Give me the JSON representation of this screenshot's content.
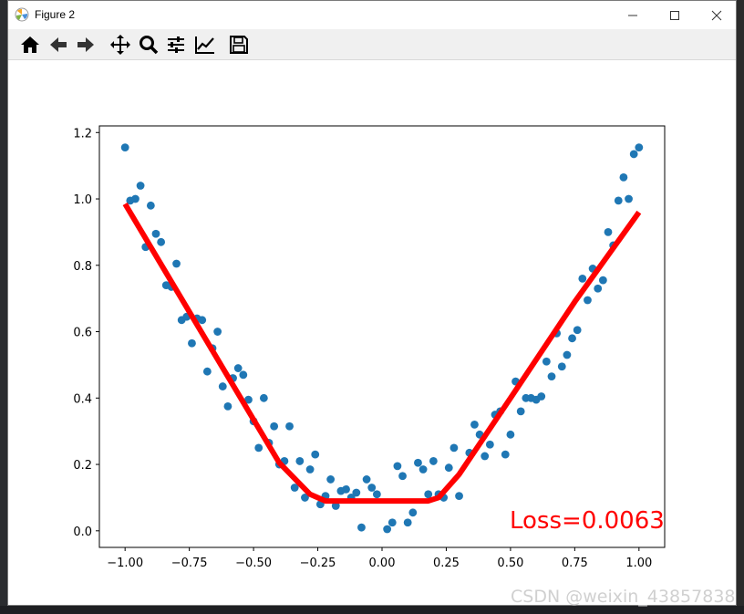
{
  "window": {
    "title": "Figure 2"
  },
  "toolbar": {
    "tools": [
      "home-icon",
      "back-icon",
      "forward-icon",
      "pan-icon",
      "zoom-icon",
      "configure-subplots-icon",
      "edit-axis-icon",
      "save-icon"
    ]
  },
  "colors": {
    "scatter": "#1f77b4",
    "fit_line": "#ff0000",
    "loss_text": "#ff0000"
  },
  "loss_text": "Loss=0.0063",
  "watermark": "CSDN @weixin_43857838",
  "chart_data": {
    "type": "scatter",
    "title": "",
    "xlabel": "",
    "ylabel": "",
    "xlim": [
      -1.1,
      1.1
    ],
    "ylim": [
      -0.05,
      1.22
    ],
    "xticks": [
      -1.0,
      -0.75,
      -0.5,
      -0.25,
      0.0,
      0.25,
      0.5,
      0.75,
      1.0
    ],
    "xtick_labels": [
      "−1.00",
      "−0.75",
      "−0.50",
      "−0.25",
      "0.00",
      "0.25",
      "0.50",
      "0.75",
      "1.00"
    ],
    "yticks": [
      0.0,
      0.2,
      0.4,
      0.6,
      0.8,
      1.0,
      1.2
    ],
    "ytick_labels": [
      "0.0",
      "0.2",
      "0.4",
      "0.6",
      "0.8",
      "1.0",
      "1.2"
    ],
    "grid": false,
    "series": [
      {
        "kind": "scatter",
        "points": [
          [
            -1.0,
            1.155
          ],
          [
            -0.98,
            0.995
          ],
          [
            -0.96,
            1.0
          ],
          [
            -0.94,
            1.04
          ],
          [
            -0.92,
            0.855
          ],
          [
            -0.9,
            0.98
          ],
          [
            -0.88,
            0.895
          ],
          [
            -0.86,
            0.87
          ],
          [
            -0.84,
            0.74
          ],
          [
            -0.82,
            0.735
          ],
          [
            -0.8,
            0.805
          ],
          [
            -0.78,
            0.635
          ],
          [
            -0.76,
            0.645
          ],
          [
            -0.74,
            0.565
          ],
          [
            -0.72,
            0.64
          ],
          [
            -0.7,
            0.635
          ],
          [
            -0.68,
            0.48
          ],
          [
            -0.66,
            0.55
          ],
          [
            -0.64,
            0.6
          ],
          [
            -0.62,
            0.435
          ],
          [
            -0.6,
            0.375
          ],
          [
            -0.58,
            0.46
          ],
          [
            -0.56,
            0.49
          ],
          [
            -0.54,
            0.47
          ],
          [
            -0.52,
            0.395
          ],
          [
            -0.5,
            0.33
          ],
          [
            -0.48,
            0.25
          ],
          [
            -0.46,
            0.4
          ],
          [
            -0.44,
            0.265
          ],
          [
            -0.42,
            0.315
          ],
          [
            -0.4,
            0.2
          ],
          [
            -0.38,
            0.21
          ],
          [
            -0.36,
            0.315
          ],
          [
            -0.34,
            0.13
          ],
          [
            -0.32,
            0.21
          ],
          [
            -0.3,
            0.1
          ],
          [
            -0.28,
            0.185
          ],
          [
            -0.26,
            0.23
          ],
          [
            -0.24,
            0.08
          ],
          [
            -0.22,
            0.105
          ],
          [
            -0.2,
            0.155
          ],
          [
            -0.18,
            0.075
          ],
          [
            -0.16,
            0.12
          ],
          [
            -0.14,
            0.125
          ],
          [
            -0.12,
            0.1
          ],
          [
            -0.1,
            0.115
          ],
          [
            -0.08,
            0.01
          ],
          [
            -0.06,
            0.155
          ],
          [
            -0.04,
            0.13
          ],
          [
            -0.02,
            0.11
          ],
          [
            0.02,
            0.005
          ],
          [
            0.04,
            0.025
          ],
          [
            0.06,
            0.195
          ],
          [
            0.08,
            0.165
          ],
          [
            0.1,
            0.025
          ],
          [
            0.12,
            0.055
          ],
          [
            0.14,
            0.205
          ],
          [
            0.16,
            0.185
          ],
          [
            0.18,
            0.11
          ],
          [
            0.2,
            0.21
          ],
          [
            0.22,
            0.11
          ],
          [
            0.24,
            0.1
          ],
          [
            0.26,
            0.19
          ],
          [
            0.28,
            0.25
          ],
          [
            0.3,
            0.105
          ],
          [
            0.34,
            0.235
          ],
          [
            0.36,
            0.32
          ],
          [
            0.38,
            0.29
          ],
          [
            0.4,
            0.225
          ],
          [
            0.42,
            0.26
          ],
          [
            0.44,
            0.35
          ],
          [
            0.46,
            0.36
          ],
          [
            0.48,
            0.23
          ],
          [
            0.5,
            0.29
          ],
          [
            0.52,
            0.45
          ],
          [
            0.54,
            0.36
          ],
          [
            0.56,
            0.4
          ],
          [
            0.58,
            0.4
          ],
          [
            0.6,
            0.395
          ],
          [
            0.62,
            0.405
          ],
          [
            0.64,
            0.51
          ],
          [
            0.66,
            0.465
          ],
          [
            0.68,
            0.595
          ],
          [
            0.7,
            0.495
          ],
          [
            0.72,
            0.53
          ],
          [
            0.74,
            0.58
          ],
          [
            0.76,
            0.605
          ],
          [
            0.78,
            0.76
          ],
          [
            0.8,
            0.695
          ],
          [
            0.82,
            0.79
          ],
          [
            0.84,
            0.73
          ],
          [
            0.86,
            0.755
          ],
          [
            0.88,
            0.9
          ],
          [
            0.9,
            0.86
          ],
          [
            0.92,
            0.995
          ],
          [
            0.94,
            1.065
          ],
          [
            0.96,
            1.0
          ],
          [
            0.98,
            1.135
          ],
          [
            1.0,
            1.155
          ]
        ]
      },
      {
        "kind": "line",
        "points": [
          [
            -1.0,
            0.985
          ],
          [
            -0.85,
            0.79
          ],
          [
            -0.6,
            0.465
          ],
          [
            -0.4,
            0.205
          ],
          [
            -0.28,
            0.11
          ],
          [
            -0.22,
            0.09
          ],
          [
            0.0,
            0.09
          ],
          [
            0.18,
            0.09
          ],
          [
            0.22,
            0.1
          ],
          [
            0.3,
            0.17
          ],
          [
            0.5,
            0.4
          ],
          [
            0.75,
            0.69
          ],
          [
            1.0,
            0.96
          ]
        ]
      }
    ]
  }
}
